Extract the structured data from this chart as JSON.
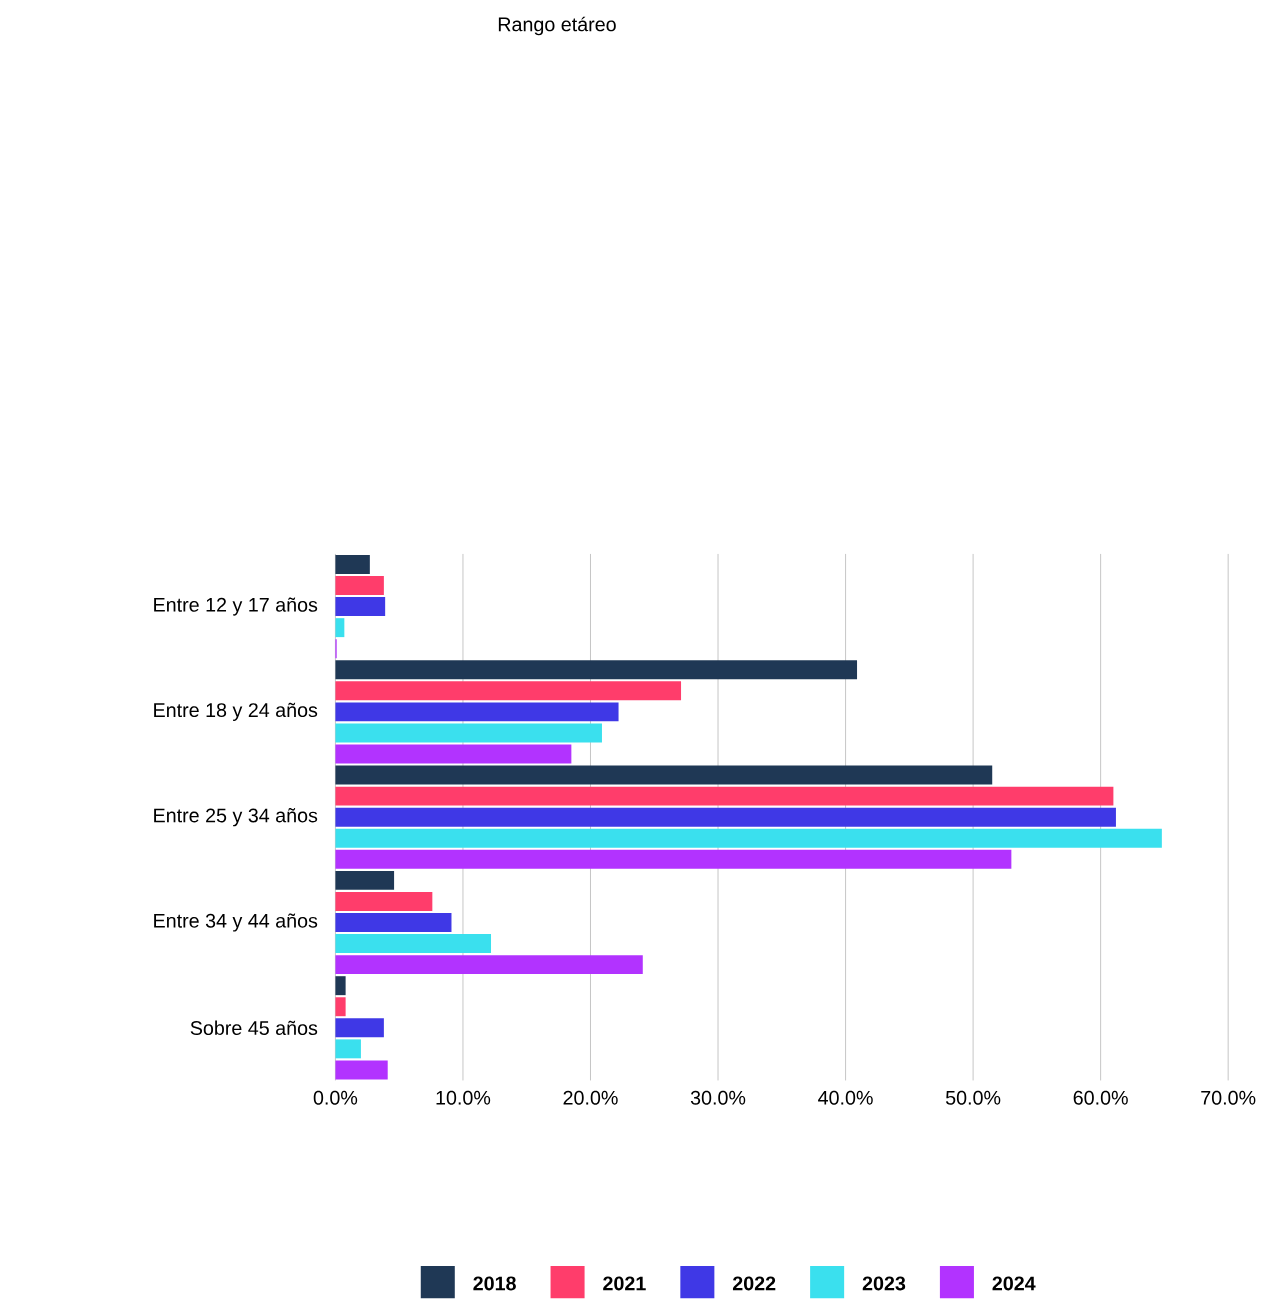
{
  "chart_data": {
    "type": "bar",
    "orientation": "horizontal",
    "title": "Rango etáreo",
    "categories": [
      "Entre 12 y 17 años",
      "Entre 18 y 24 años",
      "Entre 25 y 34 años",
      "Entre 34 y 44 años",
      "Sobre 45 años"
    ],
    "series": [
      {
        "name": "2018",
        "color": "#1f3855",
        "values": [
          2.7,
          40.9,
          51.5,
          4.6,
          0.8
        ]
      },
      {
        "name": "2021",
        "color": "#ff3d6b",
        "values": [
          3.8,
          27.1,
          61.0,
          7.6,
          0.8
        ]
      },
      {
        "name": "2022",
        "color": "#3f38e6",
        "values": [
          3.9,
          22.2,
          61.2,
          9.1,
          3.8
        ]
      },
      {
        "name": "2023",
        "color": "#3ae0ee",
        "values": [
          0.7,
          20.9,
          64.8,
          12.2,
          2.0
        ]
      },
      {
        "name": "2024",
        "color": "#b233ff",
        "values": [
          0.1,
          18.5,
          53.0,
          24.1,
          4.1
        ]
      }
    ],
    "xlim": [
      0,
      70
    ],
    "xticks": [
      {
        "value": 0,
        "label": "0.0%"
      },
      {
        "value": 10,
        "label": "10.0%"
      },
      {
        "value": 20,
        "label": "20.0%"
      },
      {
        "value": 30,
        "label": "30.0%"
      },
      {
        "value": 40,
        "label": "40.0%"
      },
      {
        "value": 50,
        "label": "50.0%"
      },
      {
        "value": 60,
        "label": "60.0%"
      },
      {
        "value": 70,
        "label": "70.0%"
      }
    ],
    "grid": "x",
    "legend": "bottom"
  }
}
